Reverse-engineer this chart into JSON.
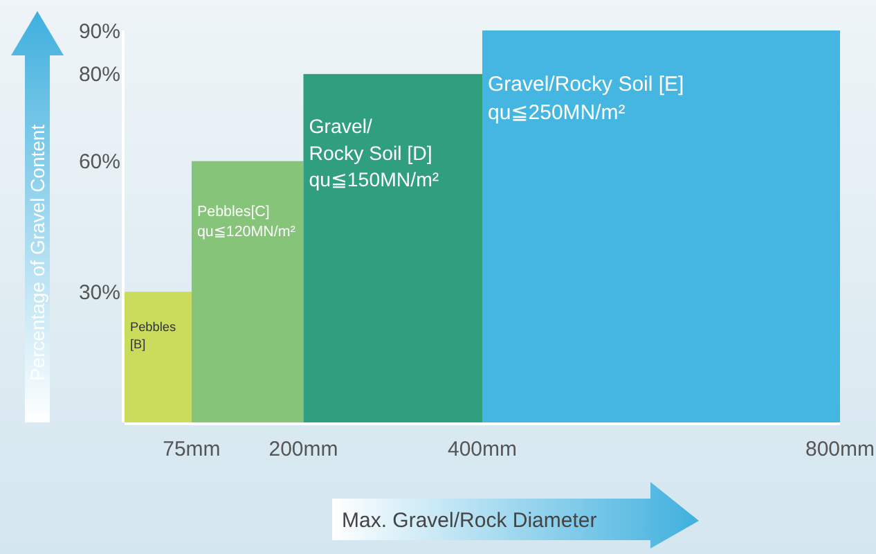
{
  "chart_data": {
    "type": "histogram",
    "bins": [
      0,
      75,
      200,
      400,
      800
    ],
    "values": [
      30,
      60,
      80,
      90
    ],
    "colors": [
      "#c9dc5c",
      "#86c47a",
      "#2f9f80",
      "#45b6e2"
    ],
    "xlim": [
      0,
      800
    ],
    "xticks": [
      {
        "value": 75,
        "label": "75mm"
      },
      {
        "value": 200,
        "label": "200mm"
      },
      {
        "value": 400,
        "label": "400mm"
      },
      {
        "value": 800,
        "label": "800mm"
      }
    ],
    "ylim": [
      0,
      90
    ],
    "yticks": [
      {
        "value": 30,
        "label": "30%"
      },
      {
        "value": 60,
        "label": "60%"
      },
      {
        "value": 80,
        "label": "80%"
      },
      {
        "value": 90,
        "label": "90%"
      }
    ],
    "xlabel": "Max. Gravel/Rock Diameter",
    "ylabel": "Percentage of Gravel Content",
    "annotations": [
      "Pebbles\n[B]",
      "Pebbles[C]\nqu≦120MN/m²",
      "Gravel/\nRocky Soil [D]\nqu≦150MN/m²",
      "Gravel/Rocky Soil [E]\nqu≦250MN/m²"
    ]
  }
}
